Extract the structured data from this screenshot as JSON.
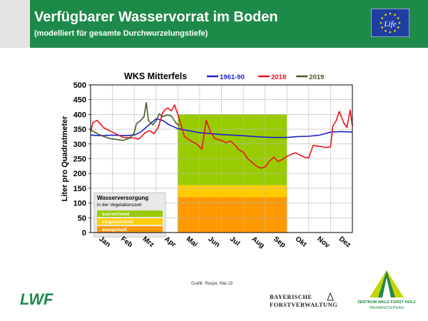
{
  "header": {
    "title": "Verfügbarer Wasservorrat im Boden",
    "subtitle": "(modelliert für gesamte Durchwurzelungstiefe)",
    "eu_logo_text": "Life",
    "color": "#1e8a4a"
  },
  "chart_data": {
    "type": "line",
    "title": "WKS Mitterfels",
    "ylabel": "Liter pro Quadratmeter",
    "xlabel": "",
    "ylim": [
      0,
      500
    ],
    "yticks": [
      0,
      50,
      100,
      150,
      200,
      250,
      300,
      350,
      400,
      450,
      500
    ],
    "xlim": [
      0,
      12
    ],
    "categories": [
      "Jan",
      "Feb",
      "Mrz",
      "Apr",
      "Mai",
      "Jun",
      "Jul",
      "Aug",
      "Sep",
      "Okt",
      "Nov",
      "Dez"
    ],
    "grid": true,
    "legend_position": "top",
    "series": [
      {
        "name": "1961-90",
        "color": "#1f1fcc",
        "x": [
          0,
          0.5,
          1.0,
          1.5,
          2.0,
          2.3,
          2.6,
          3.0,
          3.3,
          3.6,
          4.0,
          4.5,
          5.0,
          5.5,
          6.0,
          6.5,
          7.0,
          7.5,
          8.0,
          8.5,
          9.0,
          9.5,
          10.0,
          10.5,
          11.0,
          11.5,
          12.0
        ],
        "y": [
          330,
          328,
          330,
          328,
          330,
          340,
          360,
          385,
          380,
          365,
          352,
          345,
          338,
          335,
          332,
          330,
          328,
          325,
          323,
          322,
          322,
          325,
          326,
          330,
          340,
          342,
          340
        ]
      },
      {
        "name": "2018",
        "color": "#e8141c",
        "x": [
          0,
          0.1,
          0.3,
          0.6,
          1.0,
          1.5,
          2.0,
          2.2,
          2.5,
          2.7,
          2.9,
          3.1,
          3.3,
          3.45,
          3.55,
          3.7,
          3.85,
          4.0,
          4.3,
          4.6,
          4.9,
          5.1,
          5.3,
          5.5,
          5.7,
          6.0,
          6.2,
          6.4,
          6.6,
          6.8,
          7.0,
          7.2,
          7.4,
          7.6,
          7.8,
          8.0,
          8.2,
          8.4,
          8.6,
          8.8,
          9.0,
          9.2,
          9.4,
          9.6,
          9.8,
          10.0,
          10.2,
          10.5,
          10.8,
          11.0,
          11.1,
          11.25,
          11.4,
          11.6,
          11.75,
          11.9,
          12.0
        ],
        "y": [
          340,
          372,
          380,
          355,
          340,
          322,
          320,
          316,
          338,
          345,
          335,
          355,
          405,
          418,
          422,
          412,
          432,
          400,
          325,
          310,
          298,
          282,
          380,
          340,
          318,
          312,
          304,
          310,
          298,
          280,
          272,
          250,
          238,
          225,
          218,
          222,
          242,
          255,
          240,
          248,
          258,
          265,
          270,
          262,
          255,
          253,
          295,
          292,
          288,
          290,
          360,
          378,
          410,
          372,
          355,
          415,
          360
        ]
      },
      {
        "name": "2019",
        "color": "#4a5a28",
        "x": [
          0,
          0.3,
          0.6,
          0.9,
          1.2,
          1.5,
          1.8,
          2.0,
          2.1,
          2.3,
          2.45,
          2.55,
          2.65,
          2.75,
          2.85,
          3.0,
          3.15,
          3.3,
          3.5,
          3.7,
          3.9,
          4.05
        ],
        "y": [
          348,
          335,
          325,
          318,
          315,
          312,
          320,
          338,
          368,
          380,
          392,
          440,
          380,
          372,
          365,
          378,
          402,
          392,
          398,
          395,
          372,
          362
        ]
      }
    ],
    "annotations": {
      "seasons": [
        {
          "label": "ausreichend",
          "from": 160,
          "to": 400,
          "color": "#99cc00"
        },
        {
          "label": "eingeschränkt",
          "from": 120,
          "to": 160,
          "color": "#ffcc00"
        },
        {
          "label": "mangelhaft",
          "from": 0,
          "to": 120,
          "color": "#ff9900"
        }
      ],
      "season_x_range": [
        4,
        9
      ],
      "legend_title": "Wasserversorgung",
      "legend_subtitle": "in der Vegetationszeit"
    }
  },
  "footer": {
    "credit": "Grafik: Raspe, Mai 19",
    "lwf_logo": "LWF",
    "bayern_line1": "BAYERISCHE",
    "bayern_line2": "FORSTVERWALTUNG",
    "zwfh_line1": "ZENTRUM WALD FORST HOLZ",
    "zwfh_line2": "WEIHENSTEPHAN"
  }
}
